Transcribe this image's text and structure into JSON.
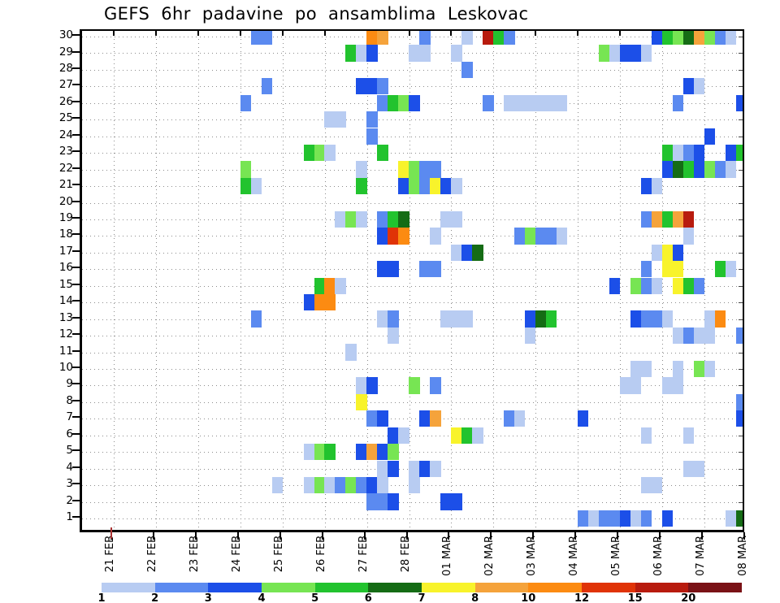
{
  "chart_data": {
    "type": "heatmap",
    "title": "GEFS 6hr padavine po ansamblima Leskovac",
    "x_ticks": [
      "21 FEB",
      "22 FEB",
      "23 FEB",
      "24 FEB",
      "25 FEB",
      "26 FEB",
      "27 FEB",
      "28 FEB",
      "01 MAR",
      "02 MAR",
      "03 MAR",
      "04 MAR",
      "05 MAR",
      "06 MAR",
      "07 MAR",
      "08 MAR"
    ],
    "y_ticks": [
      1,
      2,
      3,
      4,
      5,
      6,
      7,
      8,
      9,
      10,
      11,
      12,
      13,
      14,
      15,
      16,
      17,
      18,
      19,
      20,
      21,
      22,
      23,
      24,
      25,
      26,
      27,
      28,
      29,
      30
    ],
    "n_columns": 63,
    "columns_per_day": 4,
    "first_tick_column": 3,
    "grid": "dotted",
    "cell_format": [
      "ensemble_member_row",
      "time_step_col",
      "precip_level"
    ],
    "cells": [
      [
        30,
        16,
        2
      ],
      [
        30,
        17,
        2
      ],
      [
        30,
        27,
        10
      ],
      [
        30,
        28,
        8
      ],
      [
        30,
        32,
        2
      ],
      [
        30,
        36,
        1
      ],
      [
        30,
        38,
        15
      ],
      [
        30,
        39,
        5
      ],
      [
        30,
        40,
        2
      ],
      [
        30,
        54,
        3
      ],
      [
        30,
        55,
        5
      ],
      [
        30,
        56,
        4
      ],
      [
        30,
        57,
        6
      ],
      [
        30,
        58,
        8
      ],
      [
        30,
        59,
        4
      ],
      [
        30,
        60,
        2
      ],
      [
        30,
        61,
        1
      ],
      [
        29,
        25,
        5
      ],
      [
        29,
        26,
        1
      ],
      [
        29,
        27,
        3
      ],
      [
        29,
        31,
        1
      ],
      [
        29,
        32,
        1
      ],
      [
        29,
        35,
        1
      ],
      [
        29,
        49,
        4
      ],
      [
        29,
        50,
        1
      ],
      [
        29,
        51,
        3
      ],
      [
        29,
        52,
        3
      ],
      [
        29,
        53,
        1
      ],
      [
        28,
        36,
        2
      ],
      [
        27,
        17,
        2
      ],
      [
        27,
        26,
        3
      ],
      [
        27,
        27,
        3
      ],
      [
        27,
        28,
        2
      ],
      [
        27,
        57,
        3
      ],
      [
        27,
        58,
        1
      ],
      [
        26,
        15,
        2
      ],
      [
        26,
        28,
        2
      ],
      [
        26,
        29,
        5
      ],
      [
        26,
        30,
        4
      ],
      [
        26,
        31,
        3
      ],
      [
        26,
        38,
        2
      ],
      [
        26,
        40,
        1
      ],
      [
        26,
        41,
        1
      ],
      [
        26,
        42,
        1
      ],
      [
        26,
        43,
        1
      ],
      [
        26,
        44,
        1
      ],
      [
        26,
        45,
        1
      ],
      [
        26,
        56,
        2
      ],
      [
        26,
        62,
        3
      ],
      [
        25,
        23,
        1
      ],
      [
        25,
        24,
        1
      ],
      [
        25,
        27,
        2
      ],
      [
        24,
        27,
        2
      ],
      [
        24,
        59,
        3
      ],
      [
        23,
        21,
        5
      ],
      [
        23,
        22,
        4
      ],
      [
        23,
        23,
        1
      ],
      [
        23,
        28,
        5
      ],
      [
        23,
        55,
        5
      ],
      [
        23,
        56,
        1
      ],
      [
        23,
        57,
        2
      ],
      [
        23,
        58,
        3
      ],
      [
        23,
        61,
        3
      ],
      [
        23,
        62,
        5
      ],
      [
        22,
        15,
        4
      ],
      [
        22,
        26,
        1
      ],
      [
        22,
        30,
        7
      ],
      [
        22,
        31,
        4
      ],
      [
        22,
        32,
        2
      ],
      [
        22,
        33,
        2
      ],
      [
        22,
        55,
        3
      ],
      [
        22,
        56,
        6
      ],
      [
        22,
        57,
        5
      ],
      [
        22,
        58,
        3
      ],
      [
        22,
        59,
        4
      ],
      [
        22,
        60,
        2
      ],
      [
        22,
        61,
        1
      ],
      [
        21,
        15,
        5
      ],
      [
        21,
        16,
        1
      ],
      [
        21,
        26,
        5
      ],
      [
        21,
        30,
        3
      ],
      [
        21,
        31,
        4
      ],
      [
        21,
        32,
        2
      ],
      [
        21,
        33,
        7
      ],
      [
        21,
        34,
        3
      ],
      [
        21,
        35,
        1
      ],
      [
        21,
        53,
        3
      ],
      [
        21,
        54,
        1
      ],
      [
        19,
        24,
        1
      ],
      [
        19,
        25,
        4
      ],
      [
        19,
        26,
        1
      ],
      [
        19,
        28,
        2
      ],
      [
        19,
        29,
        5
      ],
      [
        19,
        30,
        6
      ],
      [
        19,
        34,
        1
      ],
      [
        19,
        35,
        1
      ],
      [
        19,
        53,
        2
      ],
      [
        19,
        54,
        8
      ],
      [
        19,
        55,
        5
      ],
      [
        19,
        56,
        8
      ],
      [
        19,
        57,
        15
      ],
      [
        18,
        28,
        3
      ],
      [
        18,
        29,
        12
      ],
      [
        18,
        30,
        10
      ],
      [
        18,
        33,
        1
      ],
      [
        18,
        41,
        2
      ],
      [
        18,
        42,
        4
      ],
      [
        18,
        43,
        2
      ],
      [
        18,
        44,
        2
      ],
      [
        18,
        45,
        1
      ],
      [
        18,
        57,
        1
      ],
      [
        17,
        35,
        1
      ],
      [
        17,
        36,
        3
      ],
      [
        17,
        37,
        6
      ],
      [
        17,
        54,
        1
      ],
      [
        17,
        55,
        7
      ],
      [
        17,
        56,
        3
      ],
      [
        16,
        28,
        3
      ],
      [
        16,
        29,
        3
      ],
      [
        16,
        32,
        2
      ],
      [
        16,
        33,
        2
      ],
      [
        16,
        53,
        2
      ],
      [
        16,
        55,
        7
      ],
      [
        16,
        56,
        7
      ],
      [
        16,
        60,
        5
      ],
      [
        16,
        61,
        1
      ],
      [
        15,
        22,
        5
      ],
      [
        15,
        23,
        10
      ],
      [
        15,
        24,
        1
      ],
      [
        15,
        50,
        3
      ],
      [
        15,
        52,
        4
      ],
      [
        15,
        53,
        2
      ],
      [
        15,
        54,
        1
      ],
      [
        15,
        56,
        7
      ],
      [
        15,
        57,
        5
      ],
      [
        15,
        58,
        2
      ],
      [
        14,
        21,
        3
      ],
      [
        14,
        22,
        10
      ],
      [
        14,
        23,
        10
      ],
      [
        13,
        16,
        2
      ],
      [
        13,
        28,
        1
      ],
      [
        13,
        29,
        2
      ],
      [
        13,
        34,
        1
      ],
      [
        13,
        35,
        1
      ],
      [
        13,
        36,
        1
      ],
      [
        13,
        42,
        3
      ],
      [
        13,
        43,
        6
      ],
      [
        13,
        44,
        5
      ],
      [
        13,
        52,
        3
      ],
      [
        13,
        53,
        2
      ],
      [
        13,
        54,
        2
      ],
      [
        13,
        55,
        1
      ],
      [
        13,
        59,
        1
      ],
      [
        13,
        60,
        10
      ],
      [
        12,
        29,
        1
      ],
      [
        12,
        42,
        1
      ],
      [
        12,
        56,
        1
      ],
      [
        12,
        57,
        2
      ],
      [
        12,
        58,
        1
      ],
      [
        12,
        59,
        1
      ],
      [
        12,
        62,
        2
      ],
      [
        11,
        25,
        1
      ],
      [
        10,
        52,
        1
      ],
      [
        10,
        53,
        1
      ],
      [
        10,
        56,
        1
      ],
      [
        10,
        58,
        4
      ],
      [
        10,
        59,
        1
      ],
      [
        9,
        26,
        1
      ],
      [
        9,
        27,
        3
      ],
      [
        9,
        31,
        4
      ],
      [
        9,
        33,
        2
      ],
      [
        9,
        51,
        1
      ],
      [
        9,
        52,
        1
      ],
      [
        9,
        55,
        1
      ],
      [
        9,
        56,
        1
      ],
      [
        8,
        26,
        7
      ],
      [
        8,
        62,
        2
      ],
      [
        7,
        27,
        2
      ],
      [
        7,
        28,
        3
      ],
      [
        7,
        32,
        3
      ],
      [
        7,
        33,
        8
      ],
      [
        7,
        40,
        2
      ],
      [
        7,
        41,
        1
      ],
      [
        7,
        47,
        3
      ],
      [
        7,
        62,
        3
      ],
      [
        6,
        29,
        3
      ],
      [
        6,
        30,
        1
      ],
      [
        6,
        35,
        7
      ],
      [
        6,
        36,
        5
      ],
      [
        6,
        37,
        1
      ],
      [
        6,
        53,
        1
      ],
      [
        6,
        57,
        1
      ],
      [
        5,
        21,
        1
      ],
      [
        5,
        22,
        4
      ],
      [
        5,
        23,
        5
      ],
      [
        5,
        26,
        3
      ],
      [
        5,
        27,
        8
      ],
      [
        5,
        28,
        3
      ],
      [
        5,
        29,
        4
      ],
      [
        4,
        28,
        1
      ],
      [
        4,
        29,
        3
      ],
      [
        4,
        31,
        1
      ],
      [
        4,
        32,
        3
      ],
      [
        4,
        33,
        1
      ],
      [
        4,
        57,
        1
      ],
      [
        4,
        58,
        1
      ],
      [
        3,
        18,
        1
      ],
      [
        3,
        21,
        1
      ],
      [
        3,
        22,
        4
      ],
      [
        3,
        23,
        1
      ],
      [
        3,
        24,
        2
      ],
      [
        3,
        25,
        4
      ],
      [
        3,
        26,
        2
      ],
      [
        3,
        27,
        3
      ],
      [
        3,
        28,
        1
      ],
      [
        3,
        31,
        1
      ],
      [
        3,
        53,
        1
      ],
      [
        3,
        54,
        1
      ],
      [
        2,
        27,
        2
      ],
      [
        2,
        28,
        2
      ],
      [
        2,
        29,
        3
      ],
      [
        2,
        34,
        3
      ],
      [
        2,
        35,
        3
      ],
      [
        1,
        47,
        2
      ],
      [
        1,
        48,
        1
      ],
      [
        1,
        49,
        2
      ],
      [
        1,
        50,
        2
      ],
      [
        1,
        51,
        3
      ],
      [
        1,
        52,
        1
      ],
      [
        1,
        53,
        2
      ],
      [
        1,
        55,
        3
      ],
      [
        1,
        61,
        1
      ],
      [
        1,
        62,
        6
      ]
    ],
    "legend": {
      "position": "bottom",
      "labels": [
        "1",
        "2",
        "3",
        "4",
        "5",
        "6",
        "7",
        "8",
        "10",
        "12",
        "15",
        "20"
      ],
      "segment_colors": [
        "#b8ccf2",
        "#5b8af0",
        "#1c4fe8",
        "#77e553",
        "#22c32e",
        "#156c15",
        "#f8f32b",
        "#f5a33b",
        "#fc8b12",
        "#e03307",
        "#b81b0e",
        "#7a1216"
      ],
      "color_map": {
        "1": "#b8ccf2",
        "2": "#5b8af0",
        "3": "#1c4fe8",
        "4": "#77e553",
        "5": "#22c32e",
        "6": "#156c15",
        "7": "#f8f32b",
        "8": "#f5a33b",
        "10": "#fc8b12",
        "12": "#e03307",
        "15": "#b81b0e",
        "20": "#7a1216"
      }
    }
  }
}
